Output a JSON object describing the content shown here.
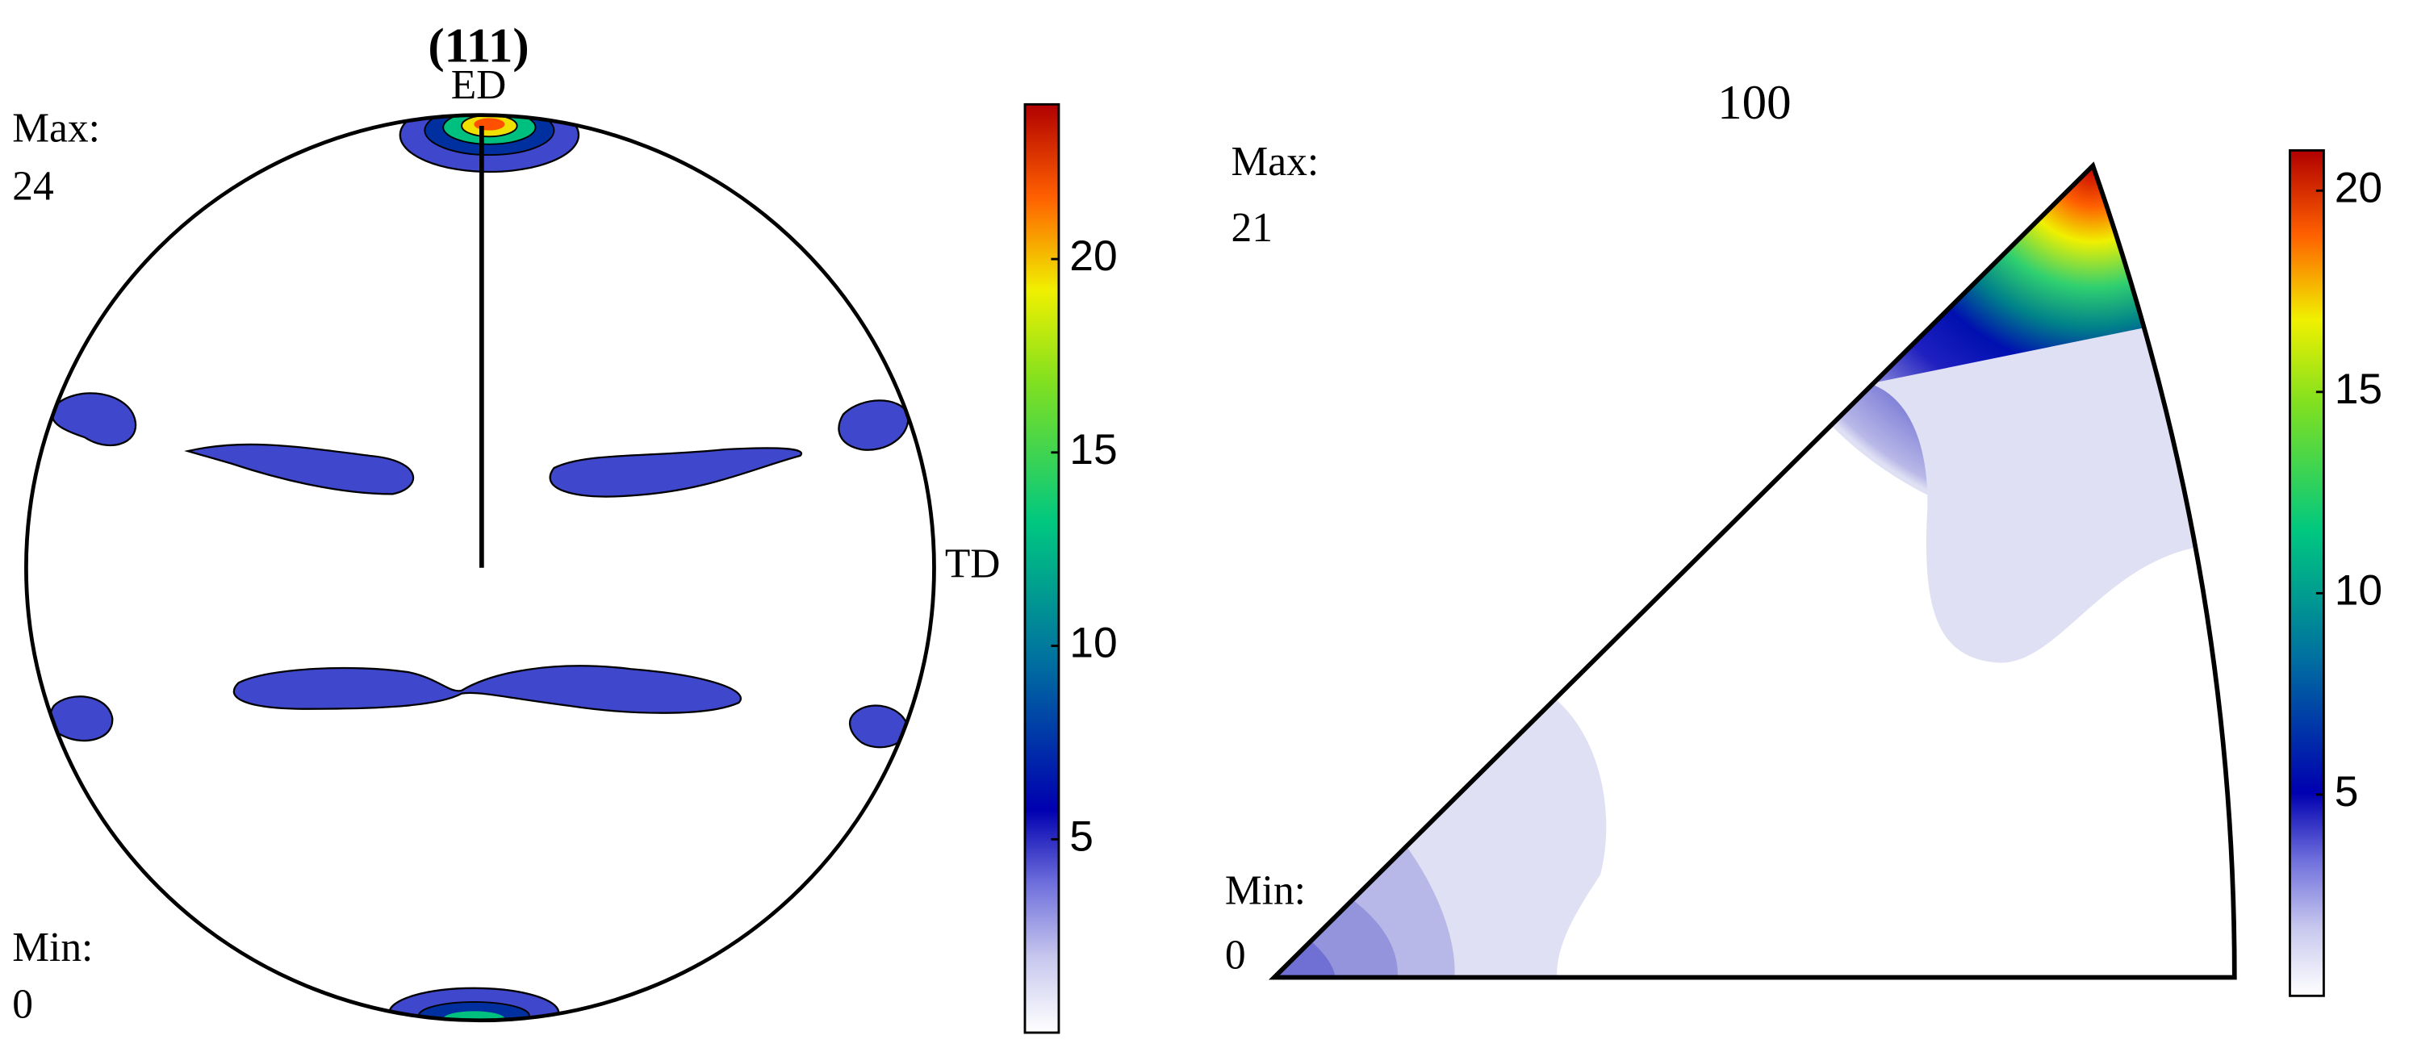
{
  "chart_data": [
    {
      "type": "pole-figure",
      "title": "(111)",
      "y_label": "ED",
      "x_label": "TD",
      "max_label": "Max:",
      "max": 24,
      "min_label": "Min:",
      "min": 0,
      "clim": [
        0,
        24
      ],
      "cticks": [
        5,
        10,
        15,
        20
      ]
    },
    {
      "type": "inverse-pole-figure",
      "title": "100",
      "max_label": "Max:",
      "max": 21,
      "min_label": "Min:",
      "min": 0,
      "clim": [
        0,
        21
      ],
      "cticks": [
        5,
        10,
        15,
        20
      ]
    }
  ]
}
